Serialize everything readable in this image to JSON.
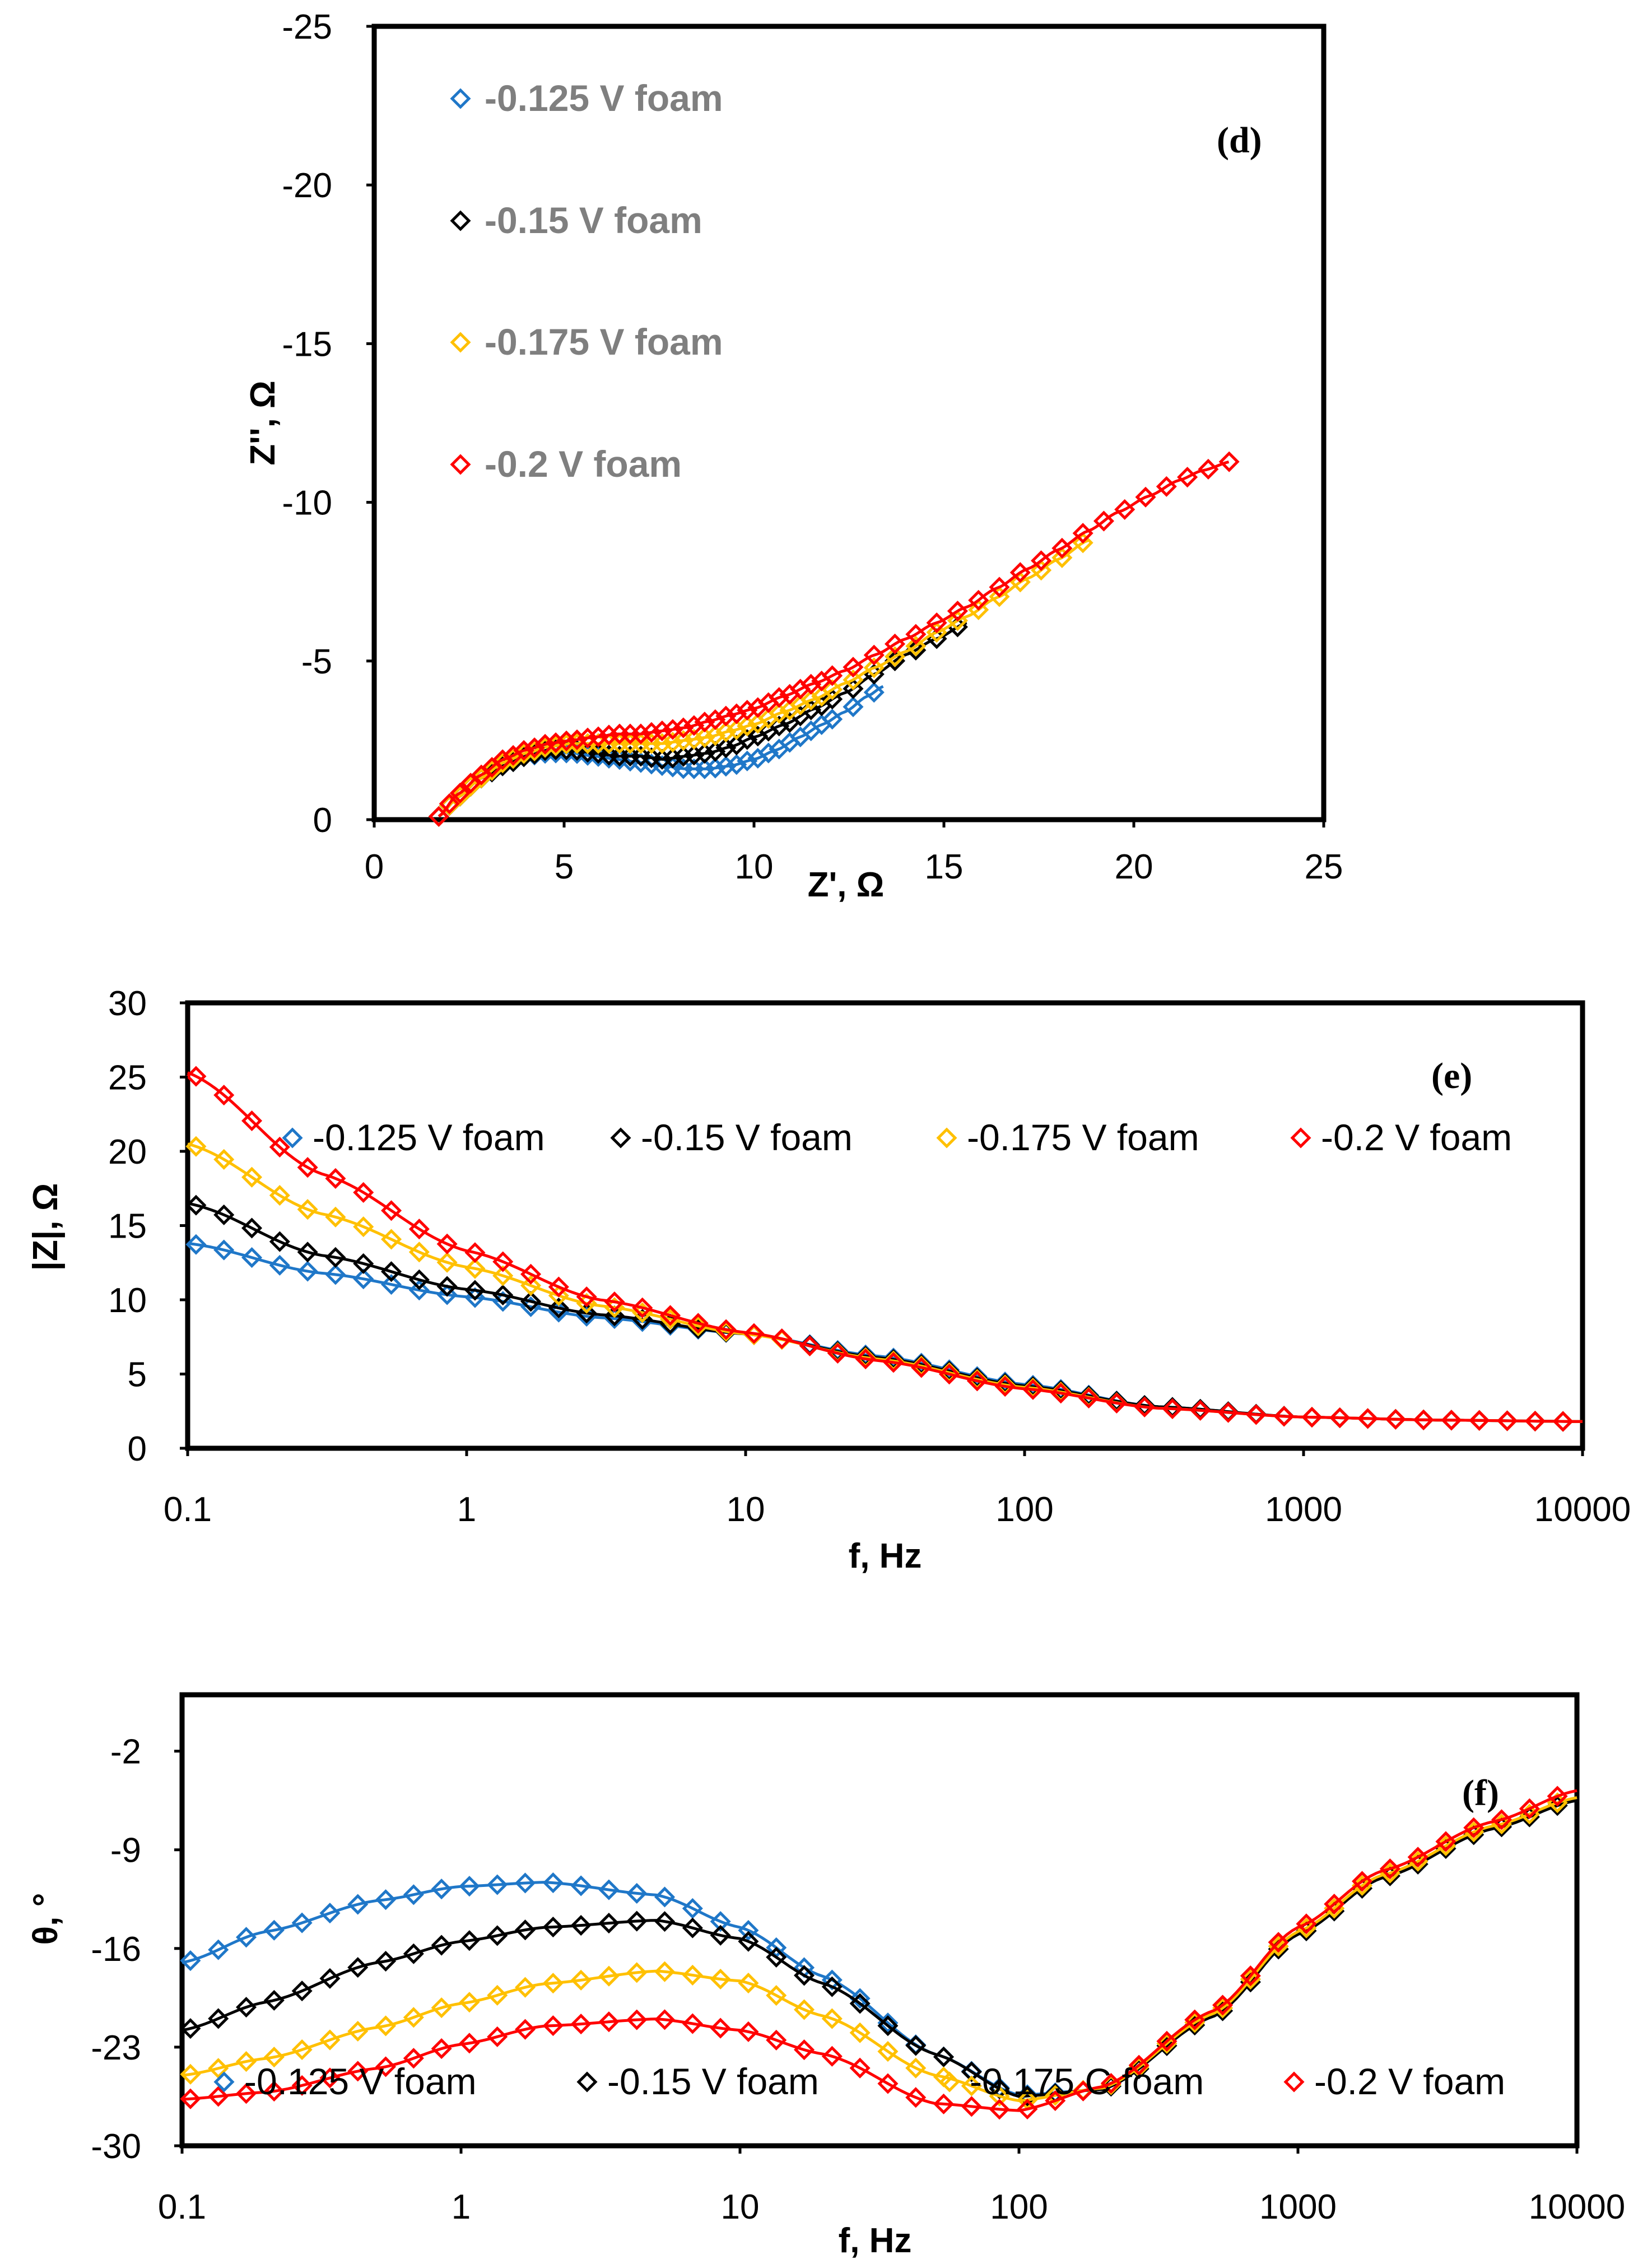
{
  "colors": {
    "c125": "#1f77c8",
    "c150": "#000000",
    "c175": "#ffc000",
    "c200": "#ff0000"
  },
  "chart_data": [
    {
      "id": "d",
      "type": "scatter",
      "panel_label": "(d)",
      "xlabel": "Z', Ω",
      "ylabel": "Z'', Ω",
      "xlim": [
        0,
        25
      ],
      "ylim": [
        0,
        -25
      ],
      "xticks": [
        "0",
        "5",
        "10",
        "15",
        "20",
        "25"
      ],
      "yticks": [
        "0",
        "-5",
        "-10",
        "-15",
        "-20",
        "-25"
      ],
      "legend_position": "top-left, stacked",
      "series": [
        {
          "name": "-0.125 V foam",
          "color": "#1f77c8",
          "x": [
            1.7,
            2.2,
            2.8,
            3.4,
            4.0,
            4.6,
            5.2,
            5.8,
            6.4,
            7.0,
            7.6,
            8.2,
            8.8,
            9.4,
            10.0,
            10.6,
            11.2,
            11.8,
            12.4,
            13.0,
            13.4
          ],
          "y": [
            -0.1,
            -0.7,
            -1.3,
            -1.7,
            -2.0,
            -2.1,
            -2.1,
            -2.0,
            -1.9,
            -1.8,
            -1.7,
            -1.6,
            -1.6,
            -1.7,
            -1.9,
            -2.2,
            -2.6,
            -3.0,
            -3.4,
            -3.9,
            -4.2
          ]
        },
        {
          "name": "-0.15 V foam",
          "color": "#000000",
          "x": [
            1.7,
            2.2,
            2.8,
            3.4,
            4.0,
            4.6,
            5.2,
            5.8,
            6.4,
            7.0,
            7.6,
            8.2,
            8.8,
            9.4,
            10.0,
            10.8,
            11.6,
            12.4,
            13.2,
            14.0,
            14.8,
            15.6
          ],
          "y": [
            -0.1,
            -0.7,
            -1.3,
            -1.7,
            -2.0,
            -2.2,
            -2.2,
            -2.1,
            -2.0,
            -2.0,
            -1.9,
            -2.0,
            -2.1,
            -2.3,
            -2.6,
            -3.0,
            -3.5,
            -4.0,
            -4.6,
            -5.2,
            -5.7,
            -6.2
          ]
        },
        {
          "name": "-0.175 V foam",
          "color": "#ffc000",
          "x": [
            1.7,
            2.2,
            2.8,
            3.4,
            4.0,
            4.6,
            5.2,
            5.8,
            6.4,
            7.0,
            7.6,
            8.2,
            8.8,
            9.4,
            10.0,
            10.8,
            11.6,
            12.4,
            13.2,
            14.0,
            14.8,
            15.6,
            16.4,
            17.2,
            18.0,
            18.8
          ],
          "y": [
            -0.1,
            -0.7,
            -1.3,
            -1.8,
            -2.1,
            -2.3,
            -2.4,
            -2.4,
            -2.4,
            -2.4,
            -2.4,
            -2.5,
            -2.6,
            -2.8,
            -3.0,
            -3.4,
            -3.8,
            -4.3,
            -4.8,
            -5.3,
            -5.9,
            -6.4,
            -7.0,
            -7.6,
            -8.2,
            -8.8
          ]
        },
        {
          "name": "-0.2 V foam",
          "color": "#ff0000",
          "x": [
            1.7,
            2.2,
            2.8,
            3.4,
            4.0,
            4.6,
            5.2,
            5.8,
            6.4,
            7.0,
            7.6,
            8.2,
            8.8,
            9.4,
            10.0,
            10.8,
            11.6,
            12.4,
            13.2,
            14.0,
            14.8,
            15.6,
            16.4,
            17.2,
            18.0,
            18.8,
            19.6,
            20.4,
            21.2,
            21.8,
            22.6
          ],
          "y": [
            -0.1,
            -0.8,
            -1.4,
            -1.9,
            -2.2,
            -2.4,
            -2.5,
            -2.6,
            -2.7,
            -2.7,
            -2.8,
            -2.9,
            -3.1,
            -3.3,
            -3.5,
            -3.9,
            -4.3,
            -4.7,
            -5.2,
            -5.7,
            -6.2,
            -6.7,
            -7.3,
            -7.9,
            -8.5,
            -9.1,
            -9.7,
            -10.2,
            -10.7,
            -11.0,
            -11.3
          ]
        }
      ]
    },
    {
      "id": "e",
      "type": "scatter",
      "panel_label": "(e)",
      "xlabel": "f, Hz",
      "ylabel": "|Z|, Ω",
      "xscale": "log",
      "xlim": [
        0.1,
        10000
      ],
      "ylim": [
        0,
        30
      ],
      "xticks": [
        "0.1",
        "1",
        "10",
        "100",
        "1000",
        "10000"
      ],
      "yticks": [
        "0",
        "5",
        "10",
        "15",
        "20",
        "25",
        "30"
      ],
      "legend_position": "top, single row",
      "series": [
        {
          "name": "-0.125 V foam",
          "color": "#1f77c8",
          "x": [
            0.1,
            0.3,
            1,
            3,
            10,
            30,
            100,
            300,
            1000,
            3000,
            10000
          ],
          "y": [
            13.8,
            11.8,
            10.2,
            8.8,
            7.7,
            6.2,
            4.3,
            2.8,
            2.1,
            1.9,
            1.8
          ]
        },
        {
          "name": "-0.15 V foam",
          "color": "#000000",
          "x": [
            0.1,
            0.3,
            1,
            3,
            10,
            30,
            100,
            300,
            1000,
            3000,
            10000
          ],
          "y": [
            16.5,
            13.0,
            10.7,
            9.0,
            7.7,
            6.1,
            4.2,
            2.8,
            2.1,
            1.9,
            1.8
          ]
        },
        {
          "name": "-0.175 V foam",
          "color": "#ffc000",
          "x": [
            0.1,
            0.3,
            1,
            3,
            10,
            30,
            100,
            300,
            1000,
            3000,
            10000
          ],
          "y": [
            20.5,
            15.8,
            12.2,
            9.6,
            7.7,
            6.0,
            4.1,
            2.7,
            2.1,
            1.9,
            1.8
          ]
        },
        {
          "name": "-0.2 V foam",
          "color": "#ff0000",
          "x": [
            0.1,
            0.3,
            1,
            3,
            10,
            30,
            100,
            300,
            1000,
            3000,
            10000
          ],
          "y": [
            25.3,
            18.5,
            13.3,
            10.0,
            7.8,
            5.9,
            4.0,
            2.7,
            2.1,
            1.9,
            1.8
          ]
        }
      ]
    },
    {
      "id": "f",
      "type": "scatter",
      "panel_label": "(f)",
      "xlabel": "f, Hz",
      "ylabel": "θ, °",
      "xscale": "log",
      "xlim": [
        0.1,
        10000
      ],
      "ylim": [
        -30,
        2
      ],
      "xticks": [
        "0.1",
        "1",
        "10",
        "100",
        "1000",
        "10000"
      ],
      "yticks": [
        "-30",
        "-23",
        "-16",
        "-9",
        "-2"
      ],
      "legend_position": "bottom, single row",
      "series": [
        {
          "name": "-0.125 V foam",
          "color": "#1f77c8",
          "x": [
            0.1,
            0.2,
            0.5,
            1,
            2,
            5,
            10,
            20,
            50,
            100,
            200,
            500,
            1000,
            2000,
            5000,
            10000
          ],
          "y": [
            -17.0,
            -14.8,
            -12.6,
            -11.6,
            -11.3,
            -12.2,
            -14.5,
            -18.0,
            -23.5,
            -26.4,
            -26.0,
            -20.8,
            -15.0,
            -11.0,
            -7.5,
            -5.5
          ]
        },
        {
          "name": "-0.15 V foam",
          "color": "#000000",
          "x": [
            0.1,
            0.2,
            0.5,
            1,
            2,
            5,
            10,
            20,
            50,
            100,
            200,
            500,
            1000,
            2000,
            5000,
            10000
          ],
          "y": [
            -21.8,
            -19.8,
            -17.0,
            -15.5,
            -14.5,
            -14.0,
            -15.3,
            -18.5,
            -23.5,
            -26.5,
            -26.0,
            -20.8,
            -15.0,
            -11.0,
            -7.5,
            -5.5
          ]
        },
        {
          "name": "-0.175 C foam",
          "color": "#ffc000",
          "x": [
            0.1,
            0.2,
            0.5,
            1,
            2,
            5,
            10,
            20,
            50,
            100,
            200,
            500,
            1000,
            2000,
            5000,
            10000
          ],
          "y": [
            -25.0,
            -23.8,
            -21.6,
            -19.9,
            -18.5,
            -17.6,
            -18.3,
            -20.8,
            -25.0,
            -26.8,
            -25.9,
            -20.6,
            -14.8,
            -10.8,
            -7.3,
            -5.3
          ]
        },
        {
          "name": "-0.2 V foam",
          "color": "#ff0000",
          "x": [
            0.1,
            0.2,
            0.5,
            1,
            2,
            5,
            10,
            20,
            50,
            100,
            200,
            500,
            1000,
            2000,
            5000,
            10000
          ],
          "y": [
            -26.7,
            -26.2,
            -24.5,
            -22.8,
            -21.5,
            -21.0,
            -21.8,
            -23.5,
            -27.0,
            -27.5,
            -25.8,
            -20.4,
            -14.5,
            -10.5,
            -7.0,
            -4.8
          ]
        }
      ]
    }
  ]
}
